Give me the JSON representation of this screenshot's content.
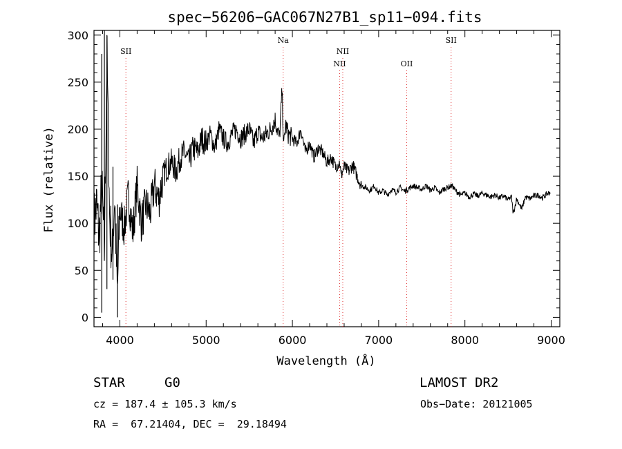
{
  "chart_data": {
    "type": "line",
    "title": "spec−56206−GAC067N27B1_sp11−094.fits",
    "xlabel": "Wavelength (Å)",
    "ylabel": "Flux (relative)",
    "xlim": [
      3700,
      9100
    ],
    "ylim": [
      -10,
      305
    ],
    "x_ticks": [
      4000,
      5000,
      6000,
      7000,
      8000,
      9000
    ],
    "y_ticks": [
      0,
      50,
      100,
      150,
      200,
      250,
      300
    ],
    "grid": false,
    "line_color": "#000000",
    "marker_color": "#e03030",
    "lines": [
      {
        "name": "SII",
        "x": 4070,
        "label_row": 1
      },
      {
        "name": "Na",
        "x": 5893,
        "label_row": 0
      },
      {
        "name": "NII",
        "x": 6548,
        "label_row": 2
      },
      {
        "name": "NII",
        "x": 6584,
        "label_row": 1
      },
      {
        "name": "OII",
        "x": 7325,
        "label_row": 2
      },
      {
        "name": "SII",
        "x": 7840,
        "label_row": 0
      }
    ],
    "series": [
      {
        "x": [
          3700,
          3730,
          3760,
          3790,
          3820,
          3850,
          3880,
          3910,
          3940,
          3970,
          4000,
          4050,
          4100,
          4150,
          4200,
          4250,
          4300,
          4350,
          4400,
          4450,
          4500,
          4550,
          4600,
          4650,
          4700,
          4750,
          4800,
          4850,
          4900,
          4950,
          5000,
          5050,
          5100,
          5150,
          5200,
          5250,
          5300,
          5350,
          5400,
          5450,
          5500,
          5550,
          5600,
          5650,
          5700,
          5750,
          5800,
          5850,
          5880,
          5900,
          5920,
          5950,
          6000,
          6050,
          6100,
          6150,
          6200,
          6250,
          6300,
          6350,
          6400,
          6450,
          6500,
          6550,
          6563,
          6600,
          6650,
          6700,
          6750,
          6800,
          6850,
          6900,
          6950,
          7000,
          7050,
          7100,
          7150,
          7200,
          7250,
          7300,
          7350,
          7400,
          7450,
          7500,
          7550,
          7600,
          7650,
          7700,
          7750,
          7800,
          7850,
          7900,
          7950,
          8000,
          8050,
          8100,
          8150,
          8200,
          8250,
          8300,
          8350,
          8400,
          8450,
          8500,
          8540,
          8560,
          8600,
          8660,
          8700,
          8750,
          8800,
          8850,
          8900,
          8950,
          8990
        ],
        "y": [
          100,
          120,
          85,
          140,
          70,
          280,
          110,
          60,
          130,
          20,
          115,
          95,
          130,
          90,
          140,
          100,
          120,
          110,
          140,
          125,
          150,
          160,
          165,
          155,
          170,
          175,
          165,
          180,
          175,
          190,
          185,
          195,
          180,
          200,
          190,
          185,
          195,
          200,
          190,
          195,
          200,
          185,
          198,
          190,
          195,
          200,
          210,
          190,
          240,
          180,
          205,
          195,
          190,
          185,
          200,
          175,
          185,
          170,
          180,
          175,
          165,
          170,
          160,
          165,
          150,
          160,
          155,
          162,
          150,
          140,
          138,
          135,
          140,
          132,
          135,
          130,
          136,
          133,
          138,
          134,
          137,
          140,
          138,
          136,
          140,
          135,
          138,
          132,
          136,
          138,
          140,
          134,
          130,
          132,
          128,
          131,
          129,
          132,
          130,
          128,
          130,
          127,
          129,
          125,
          128,
          110,
          126,
          115,
          128,
          126,
          129,
          130,
          127,
          131,
          133
        ]
      }
    ]
  },
  "info": {
    "star_label": "STAR",
    "subclass": "G0",
    "survey": "LAMOST DR2",
    "cz": "cz = 187.4 ± 105.3 km/s",
    "obs_date": "Obs−Date: 20121005",
    "coords": "RA =  67.21404, DEC =  29.18494"
  }
}
